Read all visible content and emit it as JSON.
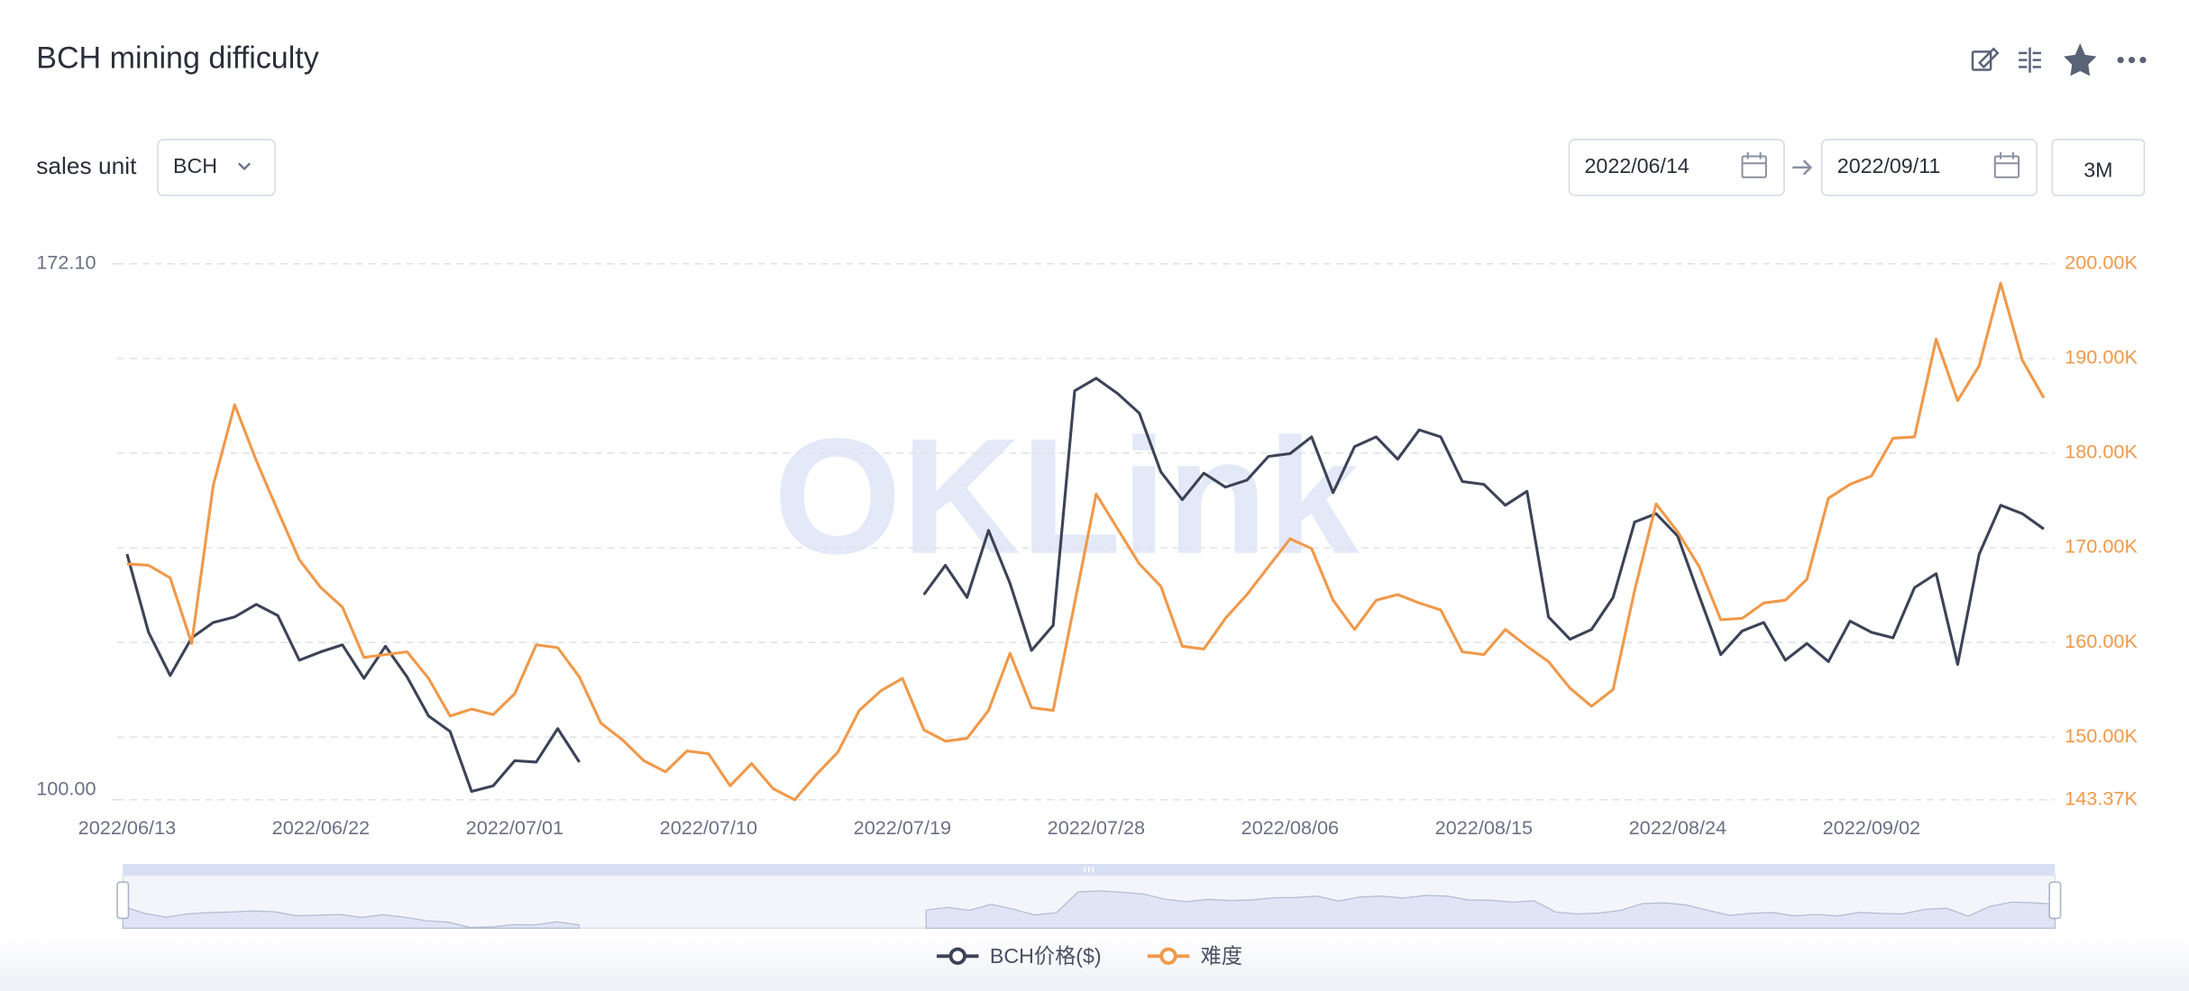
{
  "chart_data": {
    "type": "line",
    "title": "BCH mining difficulty",
    "categories": [
      "2022/06/13",
      null,
      null,
      null,
      null,
      null,
      null,
      null,
      null,
      "2022/06/22",
      null,
      null,
      null,
      null,
      null,
      null,
      null,
      null,
      "2022/07/01",
      null,
      null,
      null,
      null,
      null,
      null,
      null,
      null,
      "2022/07/10",
      null,
      null,
      null,
      null,
      null,
      null,
      null,
      null,
      "2022/07/19",
      null,
      null,
      null,
      null,
      null,
      null,
      null,
      null,
      "2022/07/28",
      null,
      null,
      null,
      null,
      null,
      null,
      null,
      null,
      "2022/08/06",
      null,
      null,
      null,
      null,
      null,
      null,
      null,
      null,
      "2022/08/15",
      null,
      null,
      null,
      null,
      null,
      null,
      null,
      null,
      "2022/08/24",
      null,
      null,
      null,
      null,
      null,
      null,
      null,
      null,
      "2022/09/02",
      null,
      null,
      null,
      null,
      null,
      null,
      null,
      null
    ],
    "series": [
      {
        "name": "BCH价格($)",
        "color": "#3d4357",
        "axis": "y",
        "values": [
          133.05,
          122.53,
          116.71,
          121.78,
          123.85,
          124.6,
          126.29,
          124.78,
          118.78,
          119.9,
          120.84,
          116.34,
          120.65,
          116.52,
          111.27,
          109.2,
          101.13,
          101.88,
          105.26,
          105.07,
          109.58,
          105.07,
          null,
          null,
          null,
          null,
          null,
          null,
          null,
          null,
          null,
          null,
          null,
          null,
          null,
          null,
          null,
          127.6,
          131.54,
          127.23,
          136.24,
          129.1,
          120.09,
          123.47,
          155.01,
          156.7,
          154.64,
          152.01,
          144.12,
          140.37,
          143.94,
          142.06,
          143.0,
          146.19,
          146.56,
          148.82,
          141.31,
          147.5,
          148.82,
          145.81,
          149.76,
          148.82,
          142.81,
          142.43,
          139.62,
          141.49,
          124.6,
          121.59,
          122.91,
          127.23,
          137.36,
          138.49,
          135.49,
          127.41,
          119.53,
          122.72,
          123.85,
          118.78,
          121.03,
          118.59,
          124.03,
          122.53,
          121.78,
          128.54,
          130.42,
          118.21,
          133.05,
          139.62,
          138.49,
          136.43
        ]
      },
      {
        "name": "难度",
        "color": "#f0994a",
        "axis": "y2",
        "values": [
          168290,
          168150,
          166820,
          159890,
          176550,
          185100,
          179210,
          173900,
          168740,
          165790,
          163720,
          158410,
          158710,
          159000,
          156200,
          152220,
          152960,
          152370,
          154580,
          159740,
          159440,
          156350,
          151480,
          149710,
          147500,
          146320,
          148530,
          148240,
          144850,
          147200,
          144550,
          143370,
          146020,
          148380,
          152810,
          154870,
          156200,
          150740,
          149560,
          149860,
          152810,
          158850,
          153100,
          152810,
          164160,
          175670,
          171980,
          168290,
          165930,
          159590,
          159300,
          162540,
          165050,
          168000,
          170950,
          169920,
          164460,
          161360,
          164460,
          165050,
          164160,
          163430,
          159000,
          158710,
          161360,
          159590,
          157970,
          155170,
          153250,
          155020,
          165490,
          174630,
          171680,
          168000,
          162390,
          162540,
          164160,
          164460,
          166670,
          175220,
          176700,
          177580,
          181570,
          181710,
          192040,
          185550,
          189230,
          197930,
          189820,
          185840
        ]
      }
    ],
    "ylim": [
      100,
      172.1
    ],
    "yticks": [
      {
        "value": 100,
        "label": "100.00"
      },
      {
        "value": 172.1,
        "label": "172.10"
      }
    ],
    "y2lim": [
      143370,
      200000
    ],
    "y2ticks": [
      {
        "value": 143370,
        "label": "143.37K"
      },
      {
        "value": 150000,
        "label": "150.00K"
      },
      {
        "value": 160000,
        "label": "160.00K"
      },
      {
        "value": 170000,
        "label": "170.00K"
      },
      {
        "value": 180000,
        "label": "180.00K"
      },
      {
        "value": 190000,
        "label": "190.00K"
      },
      {
        "value": 200000,
        "label": "200.00K"
      }
    ],
    "grid": true,
    "legend": "bottom"
  },
  "controls": {
    "unit_label": "sales unit",
    "unit": "BCH",
    "start_date": "2022/06/14",
    "end_date": "2022/09/11",
    "range": "3M"
  },
  "watermark": "OKLink"
}
